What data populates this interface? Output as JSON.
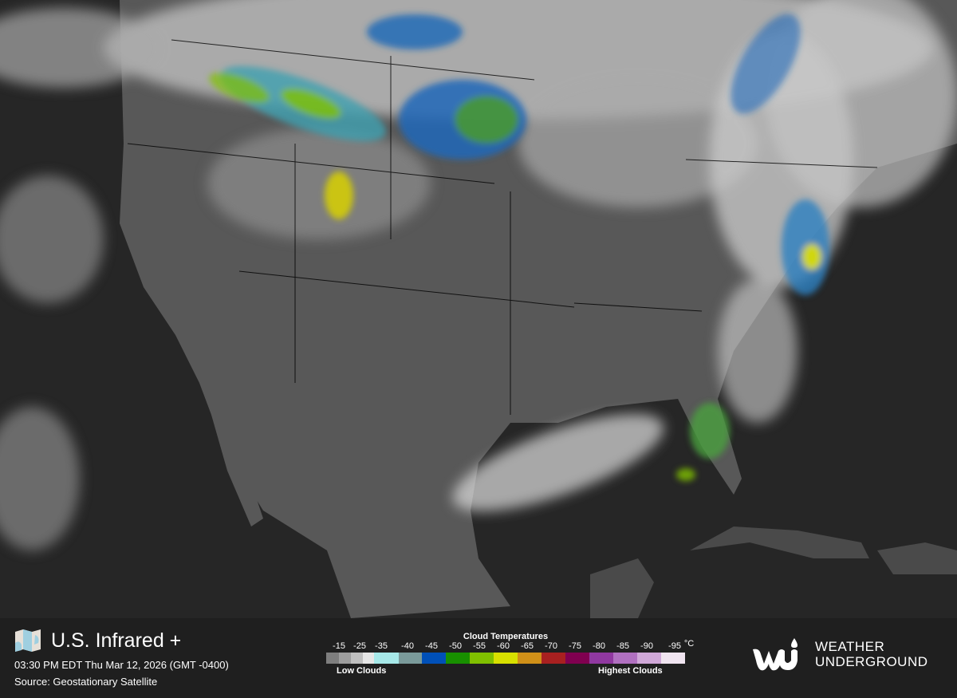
{
  "header": {
    "title": "U.S. Infrared +",
    "timestamp": "03:30 PM EDT Thu Mar 12, 2026 (GMT -0400)",
    "source": "Source: Geostationary Satellite"
  },
  "legend": {
    "title": "Cloud Temperatures",
    "unit": "°C",
    "low_label": "Low Clouds",
    "high_label": "Highest Clouds",
    "ticks": [
      "-15",
      "-25",
      "-35",
      "-40",
      "-45",
      "-50",
      "-55",
      "-60",
      "-65",
      "-70",
      "-75",
      "-80",
      "-85",
      "-90",
      "-95"
    ],
    "swatches": [
      "#7e7e7e",
      "#9e9e9e",
      "#c0c0c0",
      "#e6e6e6",
      "#a6e8e8",
      "#7a9a9a",
      "#0050b8",
      "#189000",
      "#80c000",
      "#d8e000",
      "#d09018",
      "#a82020",
      "#800050",
      "#9038a0",
      "#b070c0",
      "#d0a8d8",
      "#f0e4f0"
    ]
  },
  "brand": {
    "logo_text_1": "WEATHER",
    "logo_text_2": "UNDERGROUND"
  },
  "map": {
    "ocean_color": "#262626",
    "land_color": "#585858"
  }
}
